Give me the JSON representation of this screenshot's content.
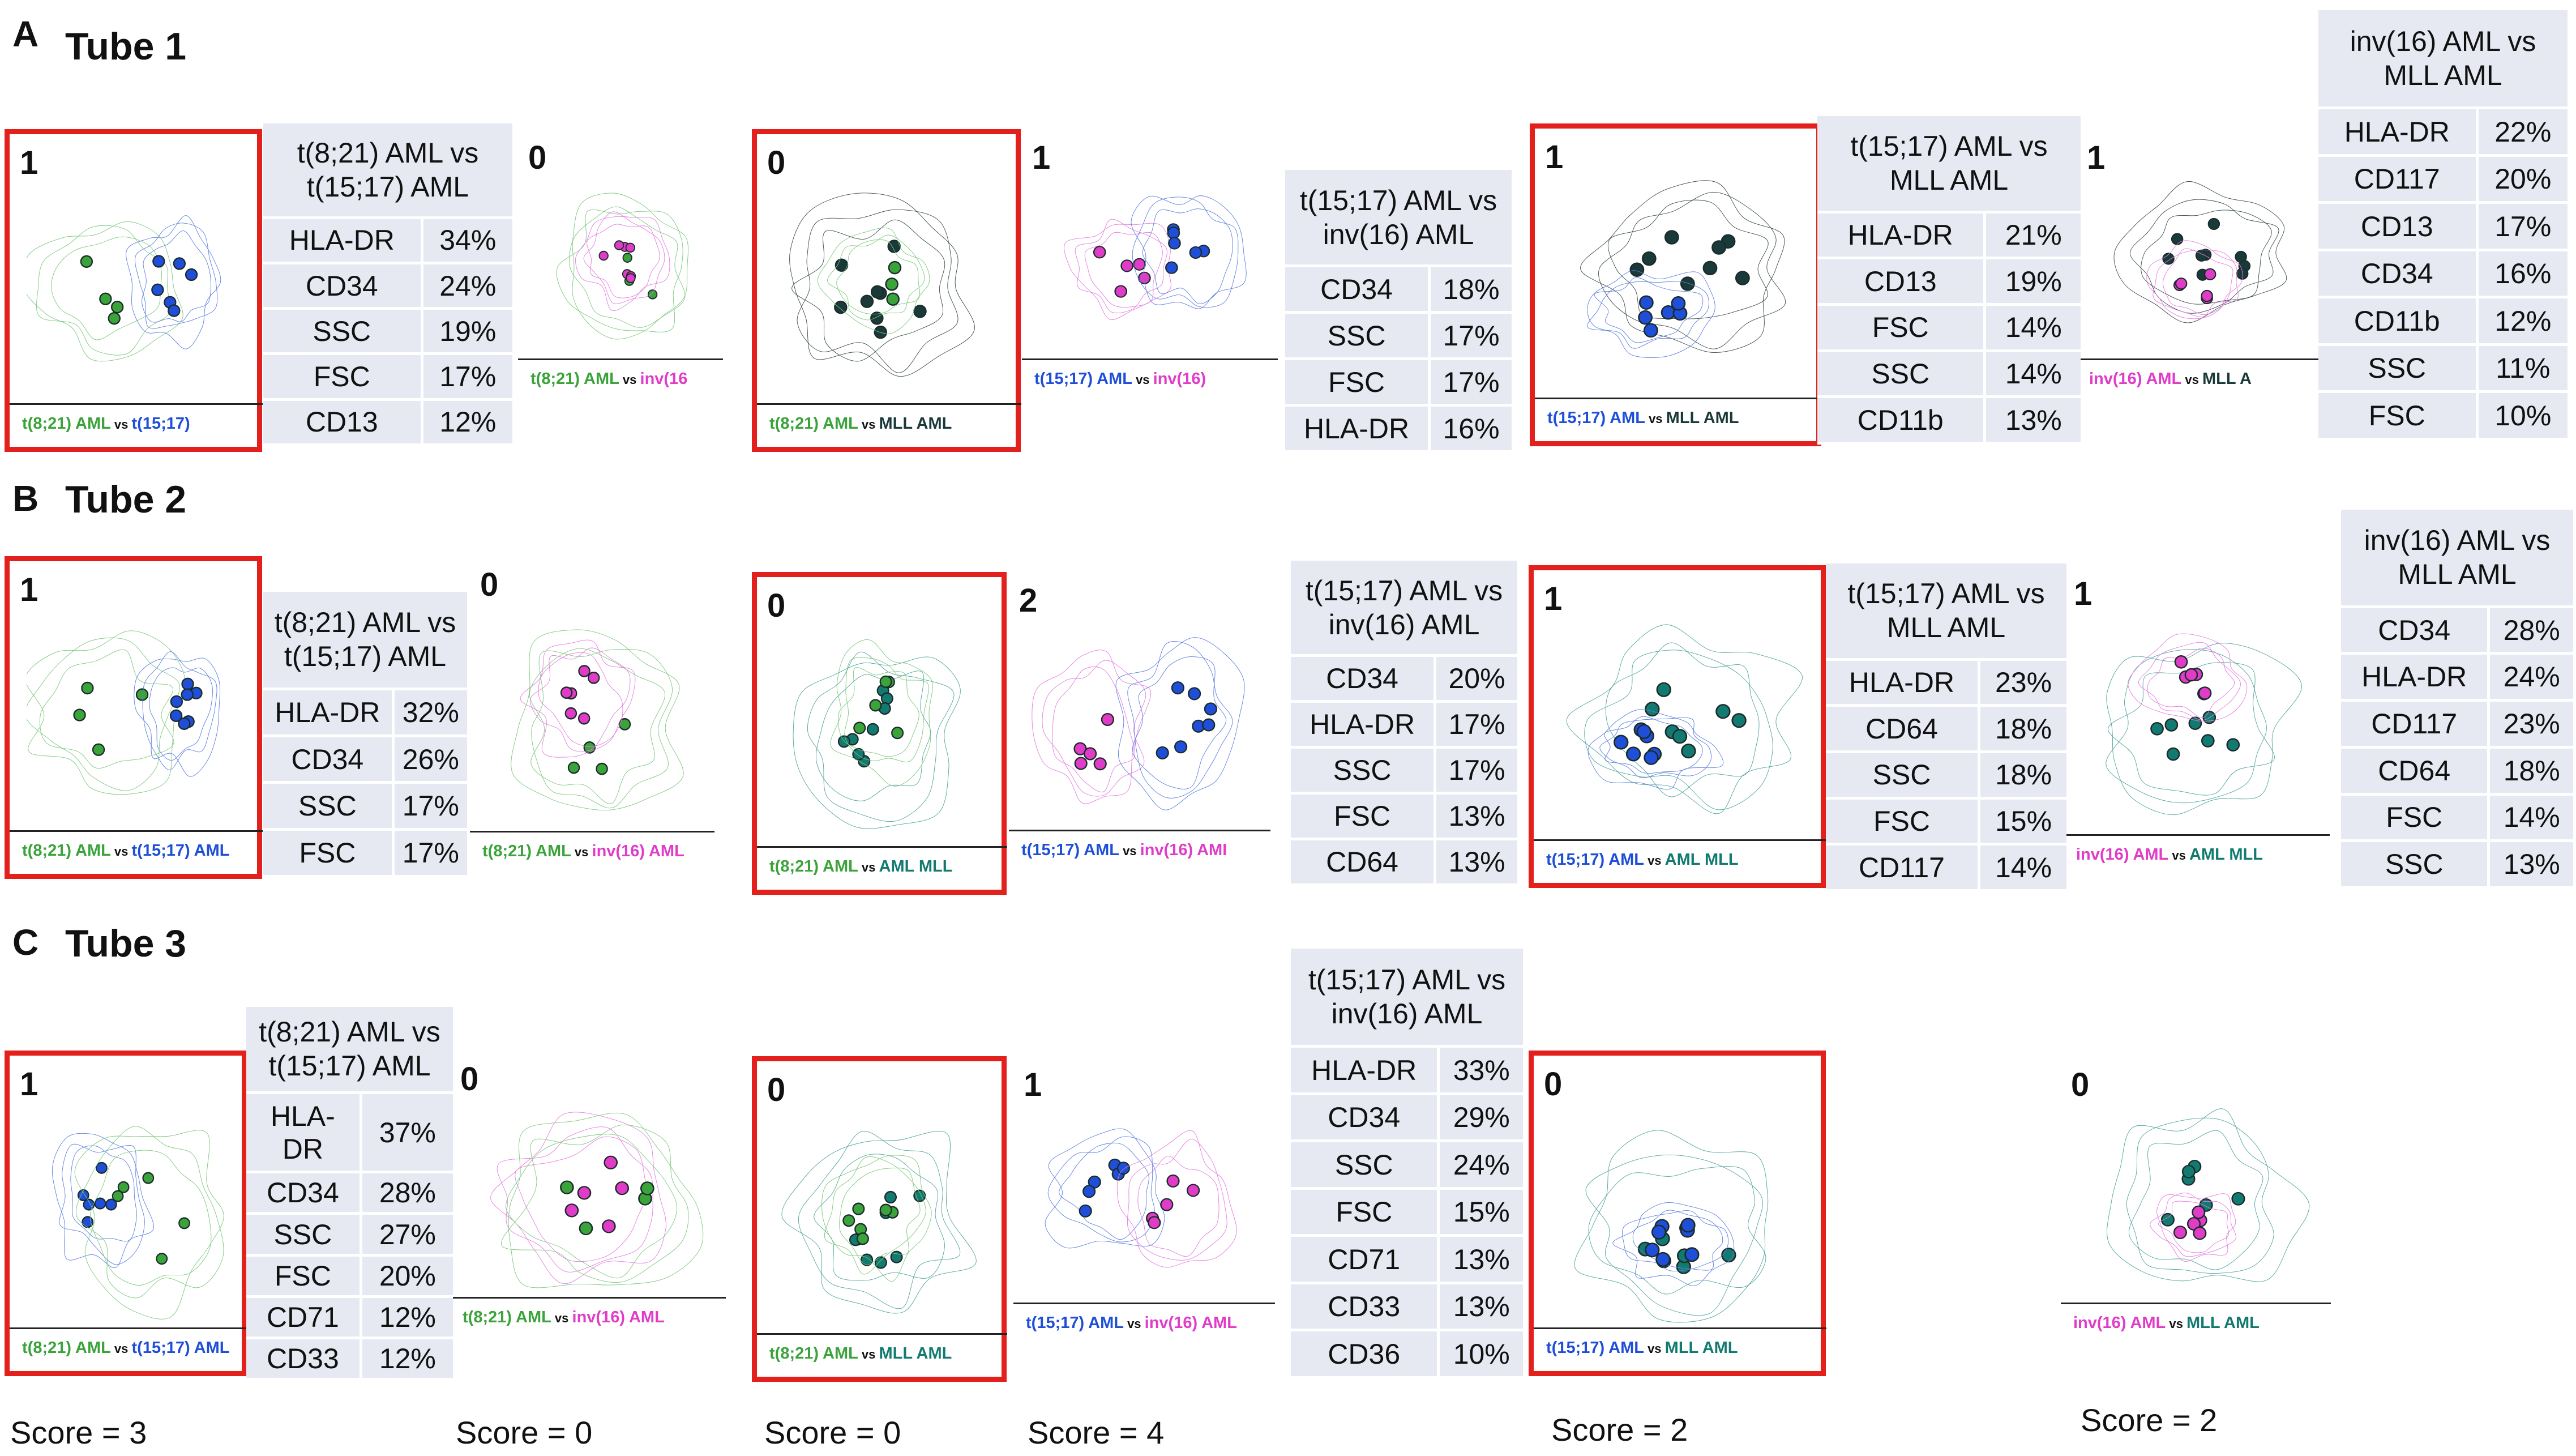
{
  "colors": {
    "t821": "#3aa33a",
    "t1517": "#1f4fd8",
    "inv16": "#e03cc8",
    "mll": "#1a3a3a",
    "mllteal": "#127a70",
    "c_green": "#7bc87b",
    "c_blue": "#5b7fe0",
    "c_pink": "#e57be0",
    "c_dark": "#3b4a4a",
    "c_teal": "#4ea49c",
    "highlight": "#e3201b"
  },
  "sections": [
    {
      "letter": "A",
      "title": "Tube 1"
    },
    {
      "letter": "B",
      "title": "Tube 2"
    },
    {
      "letter": "C",
      "title": "Tube 3"
    }
  ],
  "panels": [
    {
      "score": "1",
      "highlight": true,
      "cap": [
        {
          "t": "t(8;21) AML",
          "c": "t821"
        },
        {
          "t": " vs ",
          "c": "vs"
        },
        {
          "t": "t(15;17)",
          "c": "t1517"
        }
      ]
    },
    {
      "score": "0",
      "highlight": false,
      "cap": [
        {
          "t": "t(8;21) AML",
          "c": "t821"
        },
        {
          "t": " vs ",
          "c": "vs"
        },
        {
          "t": "inv(16",
          "c": "inv16"
        }
      ]
    },
    {
      "score": "0",
      "highlight": true,
      "cap": [
        {
          "t": "t(8;21) AML",
          "c": "t821"
        },
        {
          "t": " vs ",
          "c": "vs"
        },
        {
          "t": "MLL AML",
          "c": "mll"
        }
      ]
    },
    {
      "score": "1",
      "highlight": false,
      "cap": [
        {
          "t": "t(15;17) AML",
          "c": "t1517"
        },
        {
          "t": " vs ",
          "c": "vs"
        },
        {
          "t": "inv(16)",
          "c": "inv16"
        }
      ]
    },
    {
      "score": "1",
      "highlight": true,
      "cap": [
        {
          "t": "t(15;17) AML",
          "c": "t1517"
        },
        {
          "t": " vs ",
          "c": "vs"
        },
        {
          "t": "MLL AML",
          "c": "mll"
        }
      ]
    },
    {
      "score": "1",
      "highlight": false,
      "cap": [
        {
          "t": "inv(16) AML",
          "c": "inv16"
        },
        {
          "t": " vs ",
          "c": "vs"
        },
        {
          "t": "MLL A",
          "c": "mll"
        }
      ]
    },
    {
      "score": "1",
      "highlight": true,
      "cap": [
        {
          "t": "t(8;21) AML",
          "c": "t821"
        },
        {
          "t": " vs ",
          "c": "vs"
        },
        {
          "t": "t(15;17) AML",
          "c": "t1517"
        }
      ]
    },
    {
      "score": "0",
      "highlight": false,
      "cap": [
        {
          "t": "t(8;21) AML",
          "c": "t821"
        },
        {
          "t": " vs ",
          "c": "vs"
        },
        {
          "t": "inv(16) AML",
          "c": "inv16"
        }
      ]
    },
    {
      "score": "0",
      "highlight": true,
      "cap": [
        {
          "t": "t(8;21) AML",
          "c": "t821"
        },
        {
          "t": " vs ",
          "c": "vs"
        },
        {
          "t": "AML MLL",
          "c": "mllteal"
        }
      ]
    },
    {
      "score": "2",
      "highlight": false,
      "cap": [
        {
          "t": "t(15;17) AML",
          "c": "t1517"
        },
        {
          "t": " vs ",
          "c": "vs"
        },
        {
          "t": "inv(16) AMI",
          "c": "inv16"
        }
      ]
    },
    {
      "score": "1",
      "highlight": true,
      "cap": [
        {
          "t": "t(15;17) AML",
          "c": "t1517"
        },
        {
          "t": " vs ",
          "c": "vs"
        },
        {
          "t": "AML MLL",
          "c": "mllteal"
        }
      ]
    },
    {
      "score": "1",
      "highlight": false,
      "cap": [
        {
          "t": "inv(16) AML",
          "c": "inv16"
        },
        {
          "t": " vs ",
          "c": "vs"
        },
        {
          "t": "AML MLL",
          "c": "mllteal"
        }
      ]
    },
    {
      "score": "1",
      "highlight": true,
      "cap": [
        {
          "t": "t(8;21) AML",
          "c": "t821"
        },
        {
          "t": " vs ",
          "c": "vs"
        },
        {
          "t": "t(15;17) AML",
          "c": "t1517"
        }
      ]
    },
    {
      "score": "0",
      "highlight": false,
      "cap": [
        {
          "t": "t(8;21) AML",
          "c": "t821"
        },
        {
          "t": " vs ",
          "c": "vs"
        },
        {
          "t": "inv(16) AML",
          "c": "inv16"
        }
      ]
    },
    {
      "score": "0",
      "highlight": true,
      "cap": [
        {
          "t": "t(8;21) AML",
          "c": "t821"
        },
        {
          "t": " vs ",
          "c": "vs"
        },
        {
          "t": "MLL AML",
          "c": "mllteal"
        }
      ]
    },
    {
      "score": "1",
      "highlight": false,
      "cap": [
        {
          "t": "t(15;17) AML",
          "c": "t1517"
        },
        {
          "t": " vs ",
          "c": "vs"
        },
        {
          "t": "inv(16) AML",
          "c": "inv16"
        }
      ]
    },
    {
      "score": "0",
      "highlight": true,
      "cap": [
        {
          "t": "t(15;17) AML",
          "c": "t1517"
        },
        {
          "t": " vs ",
          "c": "vs"
        },
        {
          "t": "MLL AML",
          "c": "mllteal"
        }
      ]
    },
    {
      "score": "0",
      "highlight": false,
      "cap": [
        {
          "t": "inv(16) AML",
          "c": "inv16"
        },
        {
          "t": " vs ",
          "c": "vs"
        },
        {
          "t": "MLL AML",
          "c": "mllteal"
        }
      ]
    }
  ],
  "tables": [
    {
      "header": [
        "t(8;21) AML vs",
        "t(15;17) AML"
      ],
      "rows": [
        [
          "HLA-DR",
          "34%"
        ],
        [
          "CD34",
          "24%"
        ],
        [
          "SSC",
          "19%"
        ],
        [
          "FSC",
          "17%"
        ],
        [
          "CD13",
          "12%"
        ]
      ]
    },
    {
      "header": [
        "t(15;17) AML vs",
        "inv(16) AML"
      ],
      "rows": [
        [
          "CD34",
          "18%"
        ],
        [
          "SSC",
          "17%"
        ],
        [
          "FSC",
          "17%"
        ],
        [
          "HLA-DR",
          "16%"
        ]
      ]
    },
    {
      "header": [
        "t(15;17) AML vs",
        "MLL AML"
      ],
      "rows": [
        [
          "HLA-DR",
          "21%"
        ],
        [
          "CD13",
          "19%"
        ],
        [
          "FSC",
          "14%"
        ],
        [
          "SSC",
          "14%"
        ],
        [
          "CD11b",
          "13%"
        ]
      ]
    },
    {
      "header": [
        "inv(16) AML vs",
        "MLL AML"
      ],
      "rows": [
        [
          "HLA-DR",
          "22%"
        ],
        [
          "CD117",
          "20%"
        ],
        [
          "CD13",
          "17%"
        ],
        [
          "CD34",
          "16%"
        ],
        [
          "CD11b",
          "12%"
        ],
        [
          "SSC",
          "11%"
        ],
        [
          "FSC",
          "10%"
        ]
      ]
    },
    {
      "header": [
        "t(8;21) AML vs",
        "t(15;17) AML"
      ],
      "rows": [
        [
          "HLA-DR",
          "32%"
        ],
        [
          "CD34",
          "26%"
        ],
        [
          "SSC",
          "17%"
        ],
        [
          "FSC",
          "17%"
        ]
      ]
    },
    {
      "header": [
        "t(15;17) AML vs",
        "inv(16) AML"
      ],
      "rows": [
        [
          "CD34",
          "20%"
        ],
        [
          "HLA-DR",
          "17%"
        ],
        [
          "SSC",
          "17%"
        ],
        [
          "FSC",
          "13%"
        ],
        [
          "CD64",
          "13%"
        ]
      ]
    },
    {
      "header": [
        "t(15;17) AML vs",
        "MLL AML"
      ],
      "rows": [
        [
          "HLA-DR",
          "23%"
        ],
        [
          "CD64",
          "18%"
        ],
        [
          "SSC",
          "18%"
        ],
        [
          "FSC",
          "15%"
        ],
        [
          "CD117",
          "14%"
        ]
      ]
    },
    {
      "header": [
        "inv(16) AML vs",
        "MLL AML"
      ],
      "rows": [
        [
          "CD34",
          "28%"
        ],
        [
          "HLA-DR",
          "24%"
        ],
        [
          "CD117",
          "23%"
        ],
        [
          "CD64",
          "18%"
        ],
        [
          "FSC",
          "14%"
        ],
        [
          "SSC",
          "13%"
        ]
      ]
    },
    {
      "header": [
        "t(8;21) AML vs",
        "t(15;17) AML"
      ],
      "rows": [
        [
          "HLA-\nDR",
          "37%"
        ],
        [
          "CD34",
          "28%"
        ],
        [
          "SSC",
          "27%"
        ],
        [
          "FSC",
          "20%"
        ],
        [
          "CD71",
          "12%"
        ],
        [
          "CD33",
          "12%"
        ]
      ]
    },
    {
      "header": [
        "t(15;17) AML vs",
        "inv(16) AML"
      ],
      "rows": [
        [
          "HLA-DR",
          "33%"
        ],
        [
          "CD34",
          "29%"
        ],
        [
          "SSC",
          "24%"
        ],
        [
          "FSC",
          "15%"
        ],
        [
          "CD71",
          "13%"
        ],
        [
          "CD33",
          "13%"
        ],
        [
          "CD36",
          "10%"
        ]
      ]
    }
  ],
  "scores": [
    "Score = 3",
    "Score = 0",
    "Score = 0",
    "Score = 4",
    "Score = 2",
    "Score = 2"
  ]
}
